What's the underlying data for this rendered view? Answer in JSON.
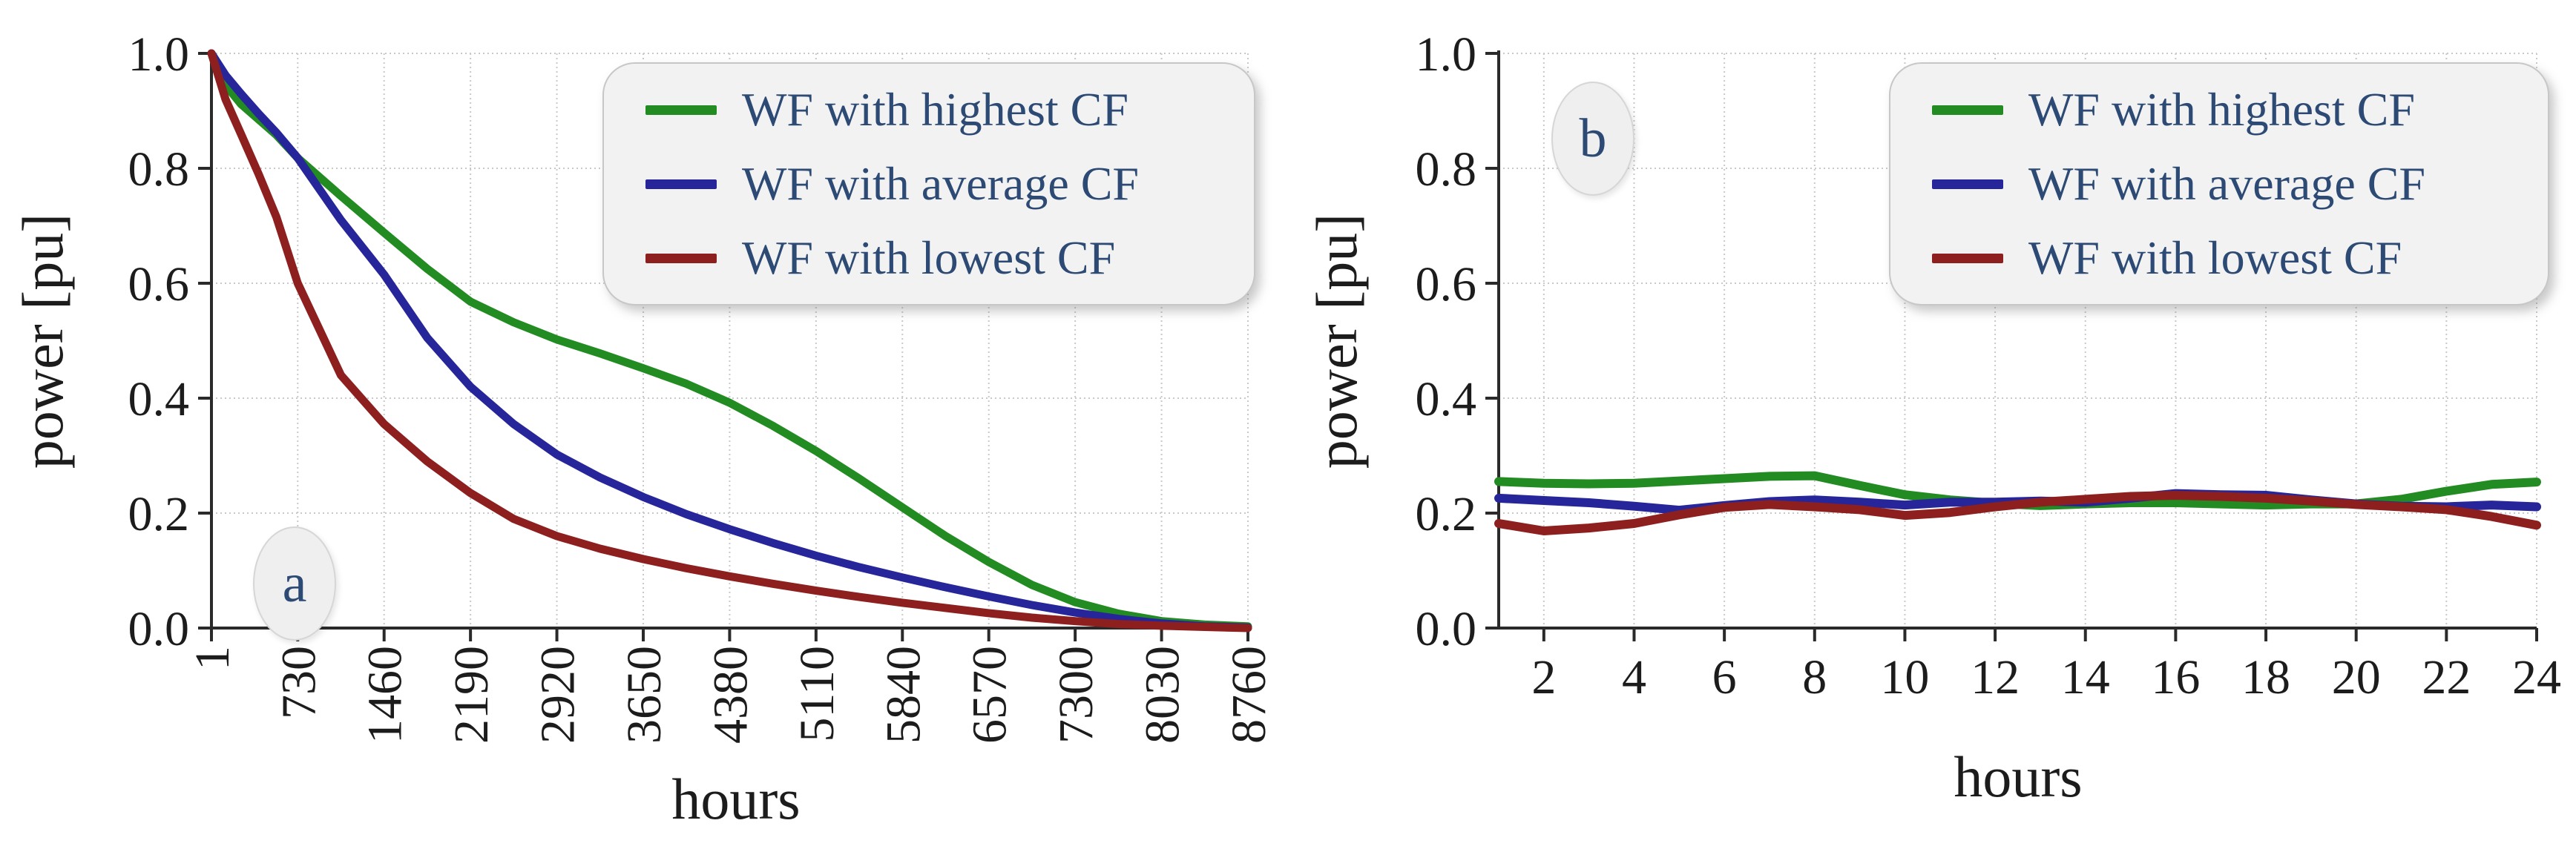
{
  "chart_data": [
    {
      "type": "line",
      "badge": "a",
      "xlabel": "hours",
      "ylabel": "power [pu]",
      "xlim": [
        1,
        8760
      ],
      "ylim": [
        0.0,
        1.0
      ],
      "grid": true,
      "legend_position": "upper right",
      "xticks": [
        1,
        730,
        1460,
        2190,
        2920,
        3650,
        4380,
        5110,
        5840,
        6570,
        7300,
        8030,
        8760
      ],
      "xtick_labels": [
        "1",
        "730",
        "1460",
        "2190",
        "2920",
        "3650",
        "4380",
        "5110",
        "5840",
        "6570",
        "7300",
        "8030",
        "8760"
      ],
      "xtick_rotation": -90,
      "yticks": [
        0.0,
        0.2,
        0.4,
        0.6,
        0.8,
        1.0
      ],
      "ytick_labels": [
        "0.0",
        "0.2",
        "0.4",
        "0.6",
        "0.8",
        "1.0"
      ],
      "series": [
        {
          "name": "WF with highest CF",
          "color": "#228b22",
          "x": [
            1,
            120,
            250,
            400,
            550,
            730,
            1095,
            1460,
            1825,
            2190,
            2555,
            2920,
            3285,
            3650,
            4015,
            4380,
            4745,
            5110,
            5475,
            5840,
            6205,
            6570,
            6935,
            7300,
            7665,
            8030,
            8395,
            8760
          ],
          "y": [
            1.0,
            0.945,
            0.912,
            0.885,
            0.858,
            0.818,
            0.752,
            0.688,
            0.625,
            0.568,
            0.532,
            0.502,
            0.478,
            0.452,
            0.425,
            0.392,
            0.352,
            0.308,
            0.26,
            0.21,
            0.16,
            0.115,
            0.075,
            0.045,
            0.025,
            0.012,
            0.006,
            0.003
          ]
        },
        {
          "name": "WF with average CF",
          "color": "#26269a",
          "x": [
            1,
            120,
            250,
            400,
            550,
            730,
            1095,
            1460,
            1825,
            2190,
            2555,
            2920,
            3285,
            3650,
            4015,
            4380,
            4745,
            5110,
            5475,
            5840,
            6205,
            6570,
            6935,
            7300,
            7665,
            8030,
            8395,
            8760
          ],
          "y": [
            1.0,
            0.962,
            0.93,
            0.895,
            0.862,
            0.818,
            0.71,
            0.615,
            0.505,
            0.42,
            0.355,
            0.302,
            0.262,
            0.228,
            0.198,
            0.172,
            0.148,
            0.126,
            0.106,
            0.088,
            0.071,
            0.055,
            0.04,
            0.027,
            0.016,
            0.008,
            0.003,
            0.001
          ]
        },
        {
          "name": "WF with lowest CF",
          "color": "#8e1f1f",
          "x": [
            1,
            120,
            250,
            400,
            550,
            730,
            1095,
            1460,
            1825,
            2190,
            2555,
            2920,
            3285,
            3650,
            4015,
            4380,
            4745,
            5110,
            5475,
            5840,
            6205,
            6570,
            6935,
            7300,
            7665,
            8030,
            8395,
            8760
          ],
          "y": [
            1.0,
            0.92,
            0.86,
            0.79,
            0.715,
            0.6,
            0.44,
            0.355,
            0.29,
            0.235,
            0.19,
            0.16,
            0.138,
            0.12,
            0.104,
            0.09,
            0.077,
            0.065,
            0.054,
            0.044,
            0.035,
            0.026,
            0.018,
            0.012,
            0.007,
            0.004,
            0.002,
            0.0
          ]
        }
      ]
    },
    {
      "type": "line",
      "badge": "b",
      "xlabel": "hours",
      "ylabel": "power [pu]",
      "xlim": [
        1,
        24
      ],
      "ylim": [
        0.0,
        1.0
      ],
      "grid": true,
      "legend_position": "upper right",
      "xticks": [
        2,
        4,
        6,
        8,
        10,
        12,
        14,
        16,
        18,
        20,
        22,
        24
      ],
      "xtick_labels": [
        "2",
        "4",
        "6",
        "8",
        "10",
        "12",
        "14",
        "16",
        "18",
        "20",
        "22",
        "24"
      ],
      "xtick_rotation": 0,
      "yticks": [
        0.0,
        0.2,
        0.4,
        0.6,
        0.8,
        1.0
      ],
      "ytick_labels": [
        "0.0",
        "0.2",
        "0.4",
        "0.6",
        "0.8",
        "1.0"
      ],
      "series": [
        {
          "name": "WF with highest CF",
          "color": "#228b22",
          "x": [
            1,
            2,
            3,
            4,
            5,
            6,
            7,
            8,
            9,
            10,
            11,
            12,
            13,
            14,
            15,
            16,
            17,
            18,
            19,
            20,
            21,
            22,
            23,
            24
          ],
          "y": [
            0.255,
            0.252,
            0.251,
            0.252,
            0.256,
            0.26,
            0.264,
            0.265,
            0.248,
            0.232,
            0.223,
            0.217,
            0.213,
            0.216,
            0.218,
            0.218,
            0.216,
            0.214,
            0.216,
            0.216,
            0.224,
            0.238,
            0.25,
            0.254
          ]
        },
        {
          "name": "WF with average CF",
          "color": "#26269a",
          "x": [
            1,
            2,
            3,
            4,
            5,
            6,
            7,
            8,
            9,
            10,
            11,
            12,
            13,
            14,
            15,
            16,
            17,
            18,
            19,
            20,
            21,
            22,
            23,
            24
          ],
          "y": [
            0.226,
            0.222,
            0.218,
            0.212,
            0.205,
            0.213,
            0.22,
            0.223,
            0.219,
            0.214,
            0.219,
            0.219,
            0.221,
            0.219,
            0.226,
            0.234,
            0.232,
            0.231,
            0.223,
            0.216,
            0.212,
            0.211,
            0.214,
            0.211
          ]
        },
        {
          "name": "WF with lowest CF",
          "color": "#8e1f1f",
          "x": [
            1,
            2,
            3,
            4,
            5,
            6,
            7,
            8,
            9,
            10,
            11,
            12,
            13,
            14,
            15,
            16,
            17,
            18,
            19,
            20,
            21,
            22,
            23,
            24
          ],
          "y": [
            0.182,
            0.169,
            0.174,
            0.182,
            0.197,
            0.21,
            0.215,
            0.211,
            0.206,
            0.196,
            0.201,
            0.211,
            0.219,
            0.224,
            0.229,
            0.231,
            0.229,
            0.226,
            0.221,
            0.215,
            0.211,
            0.206,
            0.194,
            0.179
          ]
        }
      ]
    }
  ],
  "style": {
    "axis_color": "#2a2a2a",
    "tick_label_color": "#1c1c1c",
    "grid_color": "#c9c9c9",
    "legend_text_color": "#2c4a74",
    "legend_bg": "#f2f2f2",
    "badge_bg": "#efeff0"
  }
}
